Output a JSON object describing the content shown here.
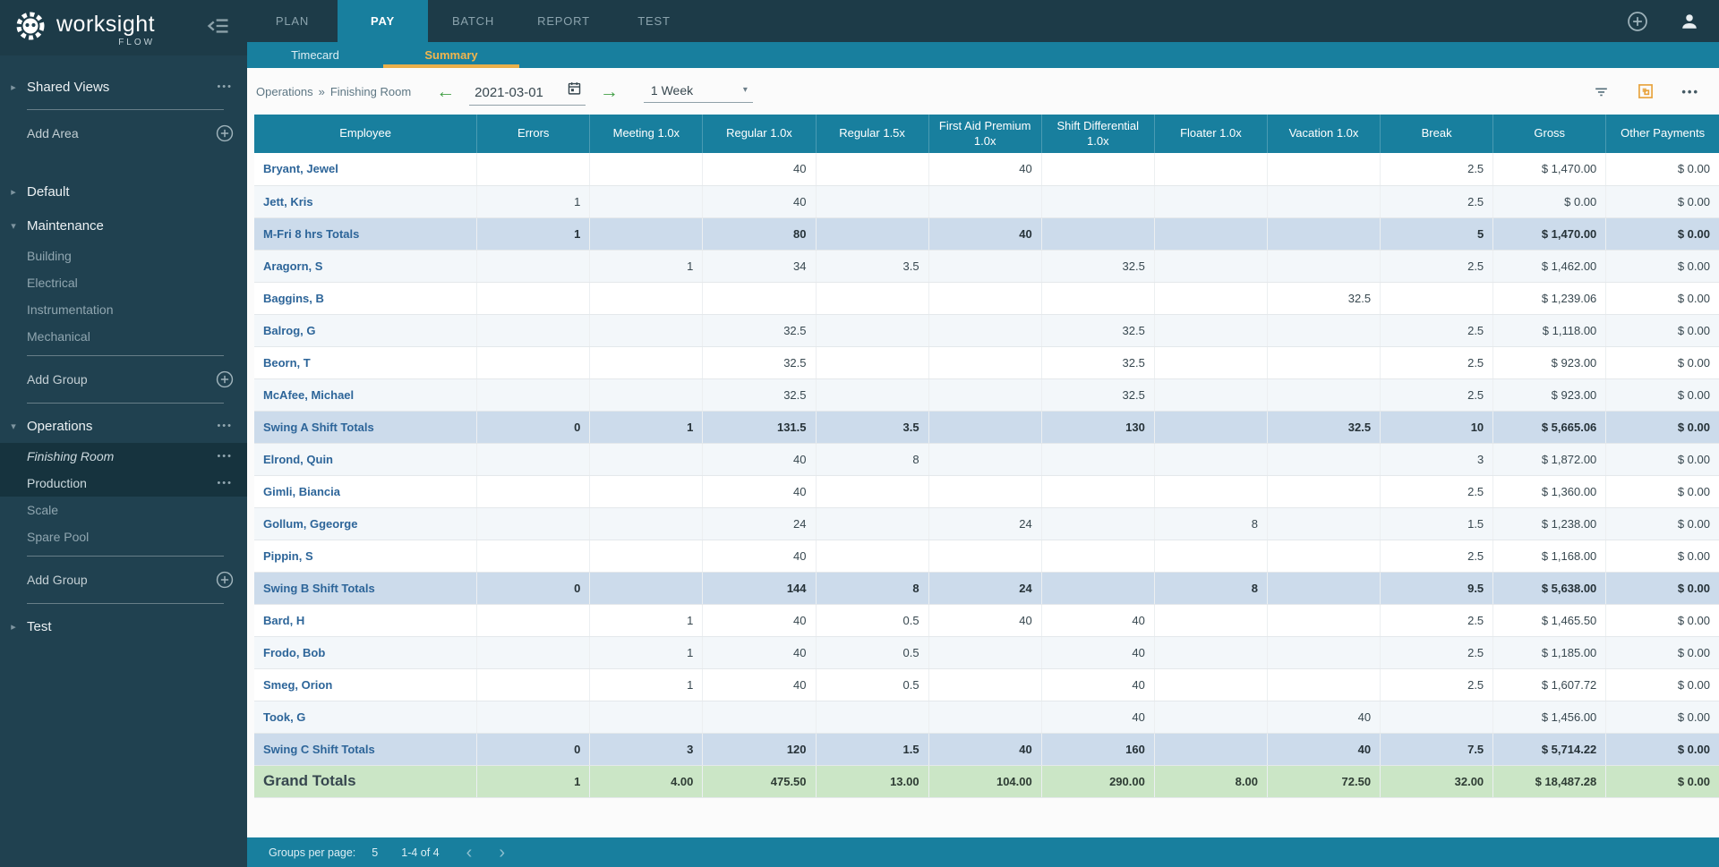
{
  "brand": {
    "name": "worksight",
    "sub": "FLOW"
  },
  "topnav": {
    "tabs": [
      {
        "label": "PLAN",
        "active": false
      },
      {
        "label": "PAY",
        "active": true
      },
      {
        "label": "BATCH",
        "active": false
      },
      {
        "label": "REPORT",
        "active": false
      },
      {
        "label": "TEST",
        "active": false
      }
    ]
  },
  "subtabs": [
    {
      "label": "Timecard",
      "active": false
    },
    {
      "label": "Summary",
      "active": true
    }
  ],
  "toolbar": {
    "breadcrumb_area": "Operations",
    "breadcrumb_separator": "»",
    "breadcrumb_group": "Finishing Room",
    "prev_arrow": "←",
    "next_arrow": "→",
    "date": "2021-03-01",
    "period": "1 Week",
    "select_caret": "▾",
    "more_label": "•••"
  },
  "sidebar": {
    "items": [
      {
        "type": "area",
        "label": "Shared Views",
        "arrow": "right",
        "dots": true
      },
      {
        "type": "divider"
      },
      {
        "type": "add",
        "label": "Add Area"
      },
      {
        "type": "gap"
      },
      {
        "type": "area",
        "label": "Default",
        "arrow": "right"
      },
      {
        "type": "area",
        "label": "Maintenance",
        "arrow": "down"
      },
      {
        "type": "child",
        "label": "Building"
      },
      {
        "type": "child",
        "label": "Electrical"
      },
      {
        "type": "child",
        "label": "Instrumentation"
      },
      {
        "type": "child",
        "label": "Mechanical"
      },
      {
        "type": "divider"
      },
      {
        "type": "add",
        "label": "Add Group"
      },
      {
        "type": "divider"
      },
      {
        "type": "area",
        "label": "Operations",
        "arrow": "down",
        "dots": true
      },
      {
        "type": "child",
        "label": "Finishing Room",
        "selected": true,
        "italic": true,
        "dots": true
      },
      {
        "type": "child",
        "label": "Production",
        "selected": true,
        "dots": true
      },
      {
        "type": "child",
        "label": "Scale"
      },
      {
        "type": "child",
        "label": "Spare Pool"
      },
      {
        "type": "divider"
      },
      {
        "type": "add",
        "label": "Add Group"
      },
      {
        "type": "divider"
      },
      {
        "type": "area",
        "label": "Test",
        "arrow": "right"
      }
    ],
    "arrow_glyphs": {
      "right": "▸",
      "down": "▾"
    },
    "dots_glyph": "•••"
  },
  "table": {
    "columns": [
      "Employee",
      "Errors",
      "Meeting 1.0x",
      "Regular 1.0x",
      "Regular 1.5x",
      "First Aid Premium 1.0x",
      "Shift Differential 1.0x",
      "Floater 1.0x",
      "Vacation 1.0x",
      "Break",
      "Gross",
      "Other Payments"
    ],
    "rows": [
      {
        "name": "Bryant, Jewel",
        "kind": "employee",
        "shade": "plain",
        "cells": [
          "",
          "",
          "40",
          "",
          "40",
          "",
          "",
          "",
          "2.5",
          "$ 1,470.00",
          "$ 0.00"
        ]
      },
      {
        "name": "Jett, Kris",
        "kind": "employee",
        "shade": "tint",
        "cells": [
          "1",
          "",
          "40",
          "",
          "",
          "",
          "",
          "",
          "2.5",
          "$ 0.00",
          "$ 0.00"
        ]
      },
      {
        "name": "M-Fri 8 hrs Totals",
        "kind": "subtotal",
        "shade": "subtotal",
        "cells": [
          "1",
          "",
          "80",
          "",
          "40",
          "",
          "",
          "",
          "5",
          "$ 1,470.00",
          "$ 0.00"
        ]
      },
      {
        "name": "Aragorn, S",
        "kind": "employee",
        "shade": "tint",
        "cells": [
          "",
          "1",
          "34",
          "3.5",
          "",
          "32.5",
          "",
          "",
          "2.5",
          "$ 1,462.00",
          "$ 0.00"
        ]
      },
      {
        "name": "Baggins, B",
        "kind": "employee",
        "shade": "plain",
        "cells": [
          "",
          "",
          "",
          "",
          "",
          "",
          "",
          "32.5",
          "",
          "$ 1,239.06",
          "$ 0.00"
        ]
      },
      {
        "name": "Balrog, G",
        "kind": "employee",
        "shade": "tint",
        "cells": [
          "",
          "",
          "32.5",
          "",
          "",
          "32.5",
          "",
          "",
          "2.5",
          "$ 1,118.00",
          "$ 0.00"
        ]
      },
      {
        "name": "Beorn, T",
        "kind": "employee",
        "shade": "plain",
        "cells": [
          "",
          "",
          "32.5",
          "",
          "",
          "32.5",
          "",
          "",
          "2.5",
          "$ 923.00",
          "$ 0.00"
        ]
      },
      {
        "name": "McAfee, Michael",
        "kind": "employee",
        "shade": "tint",
        "cells": [
          "",
          "",
          "32.5",
          "",
          "",
          "32.5",
          "",
          "",
          "2.5",
          "$ 923.00",
          "$ 0.00"
        ]
      },
      {
        "name": "Swing A Shift Totals",
        "kind": "subtotal",
        "shade": "subtotal",
        "cells": [
          "0",
          "1",
          "131.5",
          "3.5",
          "",
          "130",
          "",
          "32.5",
          "10",
          "$ 5,665.06",
          "$ 0.00"
        ]
      },
      {
        "name": "Elrond, Quin",
        "kind": "employee",
        "shade": "tint",
        "cells": [
          "",
          "",
          "40",
          "8",
          "",
          "",
          "",
          "",
          "3",
          "$ 1,872.00",
          "$ 0.00"
        ]
      },
      {
        "name": "Gimli, Biancia",
        "kind": "employee",
        "shade": "plain",
        "cells": [
          "",
          "",
          "40",
          "",
          "",
          "",
          "",
          "",
          "2.5",
          "$ 1,360.00",
          "$ 0.00"
        ]
      },
      {
        "name": "Gollum, Ggeorge",
        "kind": "employee",
        "shade": "tint",
        "cells": [
          "",
          "",
          "24",
          "",
          "24",
          "",
          "8",
          "",
          "1.5",
          "$ 1,238.00",
          "$ 0.00"
        ]
      },
      {
        "name": "Pippin, S",
        "kind": "employee",
        "shade": "plain",
        "cells": [
          "",
          "",
          "40",
          "",
          "",
          "",
          "",
          "",
          "2.5",
          "$ 1,168.00",
          "$ 0.00"
        ]
      },
      {
        "name": "Swing B Shift Totals",
        "kind": "subtotal",
        "shade": "subtotal",
        "cells": [
          "0",
          "",
          "144",
          "8",
          "24",
          "",
          "8",
          "",
          "9.5",
          "$ 5,638.00",
          "$ 0.00"
        ]
      },
      {
        "name": "Bard, H",
        "kind": "employee",
        "shade": "plain",
        "cells": [
          "",
          "1",
          "40",
          "0.5",
          "40",
          "40",
          "",
          "",
          "2.5",
          "$ 1,465.50",
          "$ 0.00"
        ]
      },
      {
        "name": "Frodo, Bob",
        "kind": "employee",
        "shade": "tint",
        "cells": [
          "",
          "1",
          "40",
          "0.5",
          "",
          "40",
          "",
          "",
          "2.5",
          "$ 1,185.00",
          "$ 0.00"
        ]
      },
      {
        "name": "Smeg, Orion",
        "kind": "employee",
        "shade": "plain",
        "cells": [
          "",
          "1",
          "40",
          "0.5",
          "",
          "40",
          "",
          "",
          "2.5",
          "$ 1,607.72",
          "$ 0.00"
        ]
      },
      {
        "name": "Took, G",
        "kind": "employee",
        "shade": "tint",
        "cells": [
          "",
          "",
          "",
          "",
          "",
          "40",
          "",
          "40",
          "",
          "$ 1,456.00",
          "$ 0.00"
        ]
      },
      {
        "name": "Swing C Shift Totals",
        "kind": "subtotal",
        "shade": "subtotal",
        "cells": [
          "0",
          "3",
          "120",
          "1.5",
          "40",
          "160",
          "",
          "40",
          "7.5",
          "$ 5,714.22",
          "$ 0.00"
        ]
      },
      {
        "name": "Grand Totals",
        "kind": "grand",
        "shade": "grand",
        "cells": [
          "1",
          "4.00",
          "475.50",
          "13.00",
          "104.00",
          "290.00",
          "8.00",
          "72.50",
          "32.00",
          "$ 18,487.28",
          "$ 0.00"
        ]
      }
    ]
  },
  "footer": {
    "label": "Groups per page:",
    "page_size": "5",
    "range": "1-4 of 4",
    "prev_glyph": "‹",
    "next_glyph": "›"
  },
  "icons": {
    "sidebar-collapse": "menu-open-left-arrow",
    "add": "circle-plus",
    "user": "person-silhouette",
    "calendar": "calendar",
    "filter": "filter-lines",
    "layout": "orange-frame-overlapping-squares",
    "more": "three-dots"
  },
  "colors": {
    "header_teal": "#187F9E",
    "dark_navy": "#1D3B48",
    "sidebar_bg": "#204150",
    "accent_orange": "#E9AF4A",
    "subtotal_row_bg": "#CCDBEB",
    "grand_row_bg": "#CBE6C6",
    "employee_link_blue": "#2D6599",
    "arrow_green": "#43A047",
    "row_tint": "#F3F7FA"
  }
}
